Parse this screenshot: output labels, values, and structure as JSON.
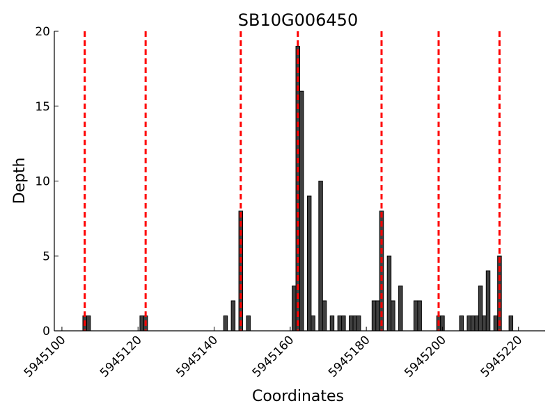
{
  "chart_data": {
    "type": "bar",
    "title": "SB10G006450",
    "xlabel": "Coordinates",
    "ylabel": "Depth",
    "xlim": [
      5945098,
      5945227
    ],
    "ylim": [
      0,
      20
    ],
    "xticks": [
      5945100,
      5945120,
      5945140,
      5945160,
      5945180,
      5945200,
      5945220
    ],
    "xtick_labels": [
      "5945100",
      "5945120",
      "5945140",
      "5945160",
      "5945180",
      "5945200",
      "5945220"
    ],
    "yticks": [
      0,
      5,
      10,
      15,
      20
    ],
    "ytick_labels": [
      "0",
      "5",
      "10",
      "15",
      "20"
    ],
    "bar_color": "#404040",
    "bar_edge_color": "#000000",
    "guide_line_color": "#ff0000",
    "guide_lines_x": [
      5945106,
      5945122,
      5945147,
      5945162,
      5945184,
      5945199,
      5945215
    ],
    "bars": [
      {
        "x": 5945106,
        "depth": 1
      },
      {
        "x": 5945107,
        "depth": 1
      },
      {
        "x": 5945121,
        "depth": 1
      },
      {
        "x": 5945122,
        "depth": 1
      },
      {
        "x": 5945143,
        "depth": 1
      },
      {
        "x": 5945145,
        "depth": 2
      },
      {
        "x": 5945147,
        "depth": 8
      },
      {
        "x": 5945149,
        "depth": 1
      },
      {
        "x": 5945161,
        "depth": 3
      },
      {
        "x": 5945162,
        "depth": 19
      },
      {
        "x": 5945163,
        "depth": 16
      },
      {
        "x": 5945165,
        "depth": 9
      },
      {
        "x": 5945166,
        "depth": 1
      },
      {
        "x": 5945168,
        "depth": 10
      },
      {
        "x": 5945169,
        "depth": 2
      },
      {
        "x": 5945171,
        "depth": 1
      },
      {
        "x": 5945173,
        "depth": 1
      },
      {
        "x": 5945174,
        "depth": 1
      },
      {
        "x": 5945176,
        "depth": 1
      },
      {
        "x": 5945177,
        "depth": 1
      },
      {
        "x": 5945178,
        "depth": 1
      },
      {
        "x": 5945182,
        "depth": 2
      },
      {
        "x": 5945183,
        "depth": 2
      },
      {
        "x": 5945184,
        "depth": 8
      },
      {
        "x": 5945186,
        "depth": 5
      },
      {
        "x": 5945187,
        "depth": 2
      },
      {
        "x": 5945189,
        "depth": 3
      },
      {
        "x": 5945193,
        "depth": 2
      },
      {
        "x": 5945194,
        "depth": 2
      },
      {
        "x": 5945199,
        "depth": 1
      },
      {
        "x": 5945200,
        "depth": 1
      },
      {
        "x": 5945205,
        "depth": 1
      },
      {
        "x": 5945207,
        "depth": 1
      },
      {
        "x": 5945208,
        "depth": 1
      },
      {
        "x": 5945209,
        "depth": 1
      },
      {
        "x": 5945210,
        "depth": 3
      },
      {
        "x": 5945211,
        "depth": 1
      },
      {
        "x": 5945212,
        "depth": 4
      },
      {
        "x": 5945214,
        "depth": 1
      },
      {
        "x": 5945215,
        "depth": 5
      },
      {
        "x": 5945218,
        "depth": 1
      }
    ]
  }
}
